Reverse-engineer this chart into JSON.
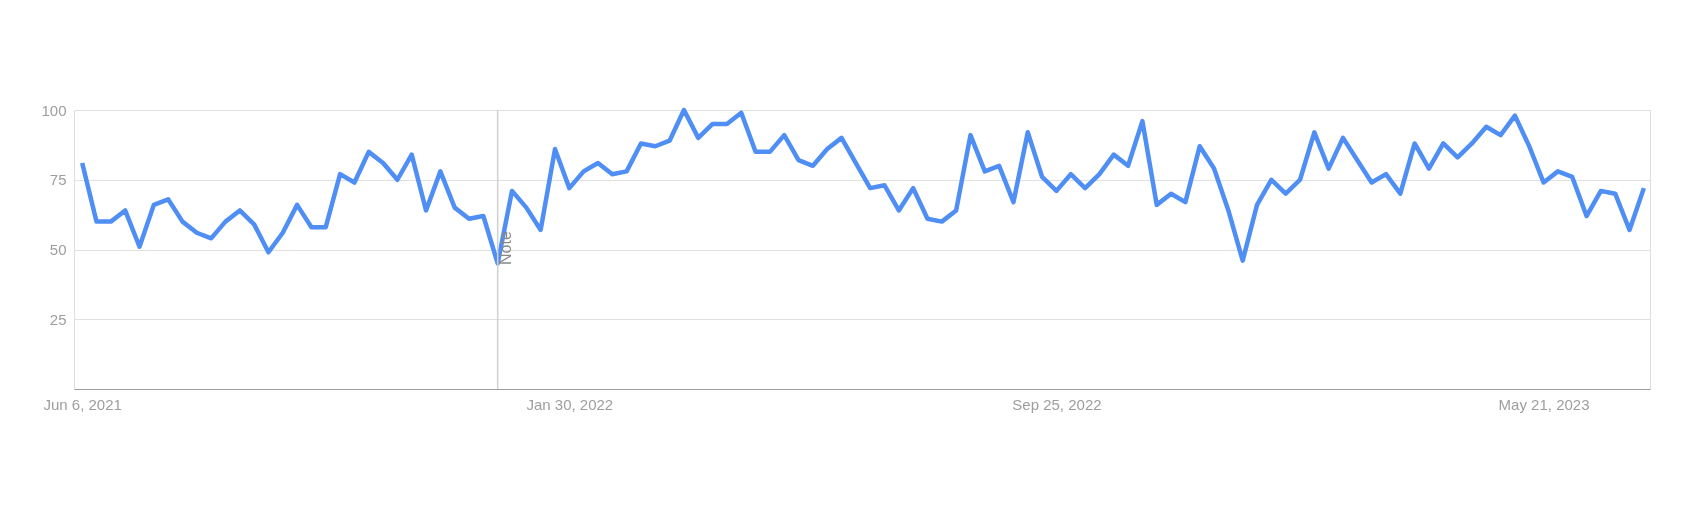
{
  "chart_data": {
    "type": "line",
    "series": [
      {
        "color": "#4f8ef5",
        "x": [
          "2021-06-06",
          "2021-06-13",
          "2021-06-20",
          "2021-06-27",
          "2021-07-04",
          "2021-07-11",
          "2021-07-18",
          "2021-07-25",
          "2021-08-01",
          "2021-08-08",
          "2021-08-15",
          "2021-08-22",
          "2021-08-29",
          "2021-09-05",
          "2021-09-12",
          "2021-09-19",
          "2021-09-26",
          "2021-10-03",
          "2021-10-10",
          "2021-10-17",
          "2021-10-24",
          "2021-10-31",
          "2021-11-07",
          "2021-11-14",
          "2021-11-21",
          "2021-11-28",
          "2021-12-05",
          "2021-12-12",
          "2021-12-19",
          "2021-12-26",
          "2022-01-02",
          "2022-01-09",
          "2022-01-16",
          "2022-01-23",
          "2022-01-30",
          "2022-02-06",
          "2022-02-13",
          "2022-02-20",
          "2022-02-27",
          "2022-03-06",
          "2022-03-13",
          "2022-03-20",
          "2022-03-27",
          "2022-04-03",
          "2022-04-10",
          "2022-04-17",
          "2022-04-24",
          "2022-05-01",
          "2022-05-08",
          "2022-05-15",
          "2022-05-22",
          "2022-05-29",
          "2022-06-05",
          "2022-06-12",
          "2022-06-19",
          "2022-06-26",
          "2022-07-03",
          "2022-07-10",
          "2022-07-17",
          "2022-07-24",
          "2022-07-31",
          "2022-08-07",
          "2022-08-14",
          "2022-08-21",
          "2022-08-28",
          "2022-09-04",
          "2022-09-11",
          "2022-09-18",
          "2022-09-25",
          "2022-10-02",
          "2022-10-09",
          "2022-10-16",
          "2022-10-23",
          "2022-10-30",
          "2022-11-06",
          "2022-11-13",
          "2022-11-20",
          "2022-11-27",
          "2022-12-04",
          "2022-12-11",
          "2022-12-18",
          "2022-12-25",
          "2023-01-01",
          "2023-01-08",
          "2023-01-15",
          "2023-01-22",
          "2023-01-29",
          "2023-02-05",
          "2023-02-12",
          "2023-02-19",
          "2023-02-26",
          "2023-03-05",
          "2023-03-12",
          "2023-03-19",
          "2023-03-26",
          "2023-04-02",
          "2023-04-09",
          "2023-04-16",
          "2023-04-23",
          "2023-04-30",
          "2023-05-07",
          "2023-05-14",
          "2023-05-21",
          "2023-05-28",
          "2023-06-04",
          "2023-06-11",
          "2023-06-18",
          "2023-06-25",
          "2023-07-02",
          "2023-07-09"
        ],
        "values": [
          81,
          60,
          60,
          64,
          51,
          66,
          68,
          60,
          56,
          54,
          60,
          64,
          59,
          49,
          56,
          66,
          58,
          58,
          77,
          74,
          85,
          81,
          75,
          84,
          64,
          78,
          65,
          61,
          62,
          45,
          71,
          65,
          57,
          86,
          72,
          78,
          81,
          77,
          78,
          88,
          87,
          89,
          100,
          90,
          95,
          95,
          99,
          85,
          85,
          91,
          82,
          80,
          86,
          90,
          81,
          72,
          73,
          64,
          72,
          61,
          60,
          64,
          91,
          78,
          80,
          67,
          92,
          76,
          71,
          77,
          72,
          77,
          84,
          80,
          96,
          66,
          70,
          67,
          87,
          79,
          64,
          46,
          66,
          75,
          70,
          75,
          92,
          79,
          90,
          82,
          74,
          77,
          70,
          88,
          79,
          88,
          83,
          88,
          94,
          91,
          98,
          87,
          74,
          78,
          76,
          62,
          71,
          70,
          57,
          72
        ]
      }
    ],
    "xlim": [
      "2021-06-02",
      "2023-07-12"
    ],
    "xticks": [
      {
        "value": "2021-06-06",
        "label": "Jun 6, 2021"
      },
      {
        "value": "2022-01-30",
        "label": "Jan 30, 2022"
      },
      {
        "value": "2022-09-25",
        "label": "Sep 25, 2022"
      },
      {
        "value": "2023-05-21",
        "label": "May 21, 2023"
      }
    ],
    "ylim": [
      0,
      100
    ],
    "yticks": [
      25,
      50,
      75,
      100
    ],
    "grid": "y",
    "legend": false,
    "marker": "none",
    "line_style": "solid",
    "ref_lines": [
      {
        "axis": "x",
        "value": "2021-12-26",
        "label": "Note",
        "color": "#d0d0d0"
      }
    ]
  }
}
